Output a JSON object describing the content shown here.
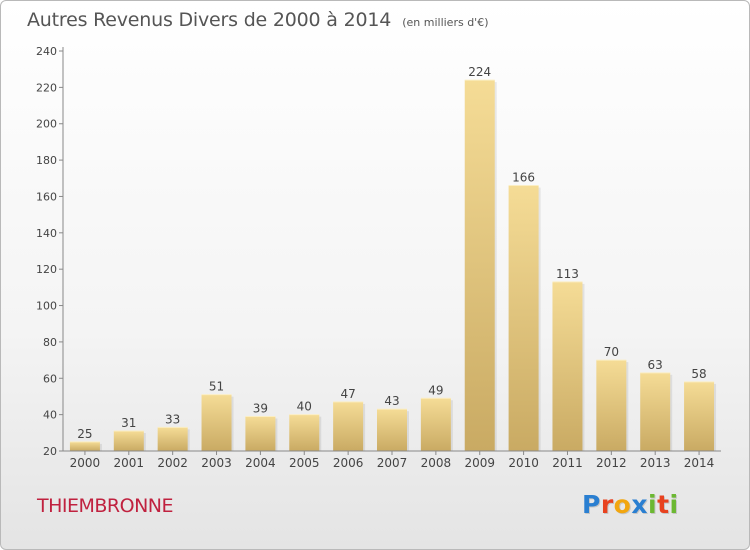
{
  "header": {
    "title": "Autres Revenus Divers de 2000 à 2014",
    "subtitle": "(en milliers d'€)"
  },
  "footer": {
    "commune": "THIEMBRONNE",
    "logo": "Proxiti",
    "logo_letters": [
      {
        "char": "P",
        "color": "#2a7fd1"
      },
      {
        "char": "r",
        "color": "#e8421f"
      },
      {
        "char": "o",
        "color": "#f2a60f"
      },
      {
        "char": "x",
        "color": "#2a7fd1"
      },
      {
        "char": "i",
        "color": "#6cb832"
      },
      {
        "char": "t",
        "color": "#e8421f"
      },
      {
        "char": "i",
        "color": "#6cb832"
      }
    ]
  },
  "chart_data": {
    "type": "bar",
    "title": "Autres Revenus Divers de 2000 à 2014",
    "subtitle": "(en milliers d'€)",
    "categories": [
      "2000",
      "2001",
      "2002",
      "2003",
      "2004",
      "2005",
      "2006",
      "2007",
      "2008",
      "2009",
      "2010",
      "2011",
      "2012",
      "2013",
      "2014"
    ],
    "values": [
      25,
      31,
      33,
      51,
      39,
      40,
      47,
      43,
      49,
      224,
      166,
      113,
      70,
      63,
      58
    ],
    "ylim": [
      20,
      240
    ],
    "yticks": [
      20,
      40,
      60,
      80,
      100,
      120,
      140,
      160,
      180,
      200,
      220,
      240
    ],
    "xlabel": "",
    "ylabel": "",
    "grid": false,
    "bar_color_light": "#f5dc96",
    "bar_color_dark": "#c9aa63",
    "axis_color": "#888888",
    "label_color": "#444444"
  }
}
